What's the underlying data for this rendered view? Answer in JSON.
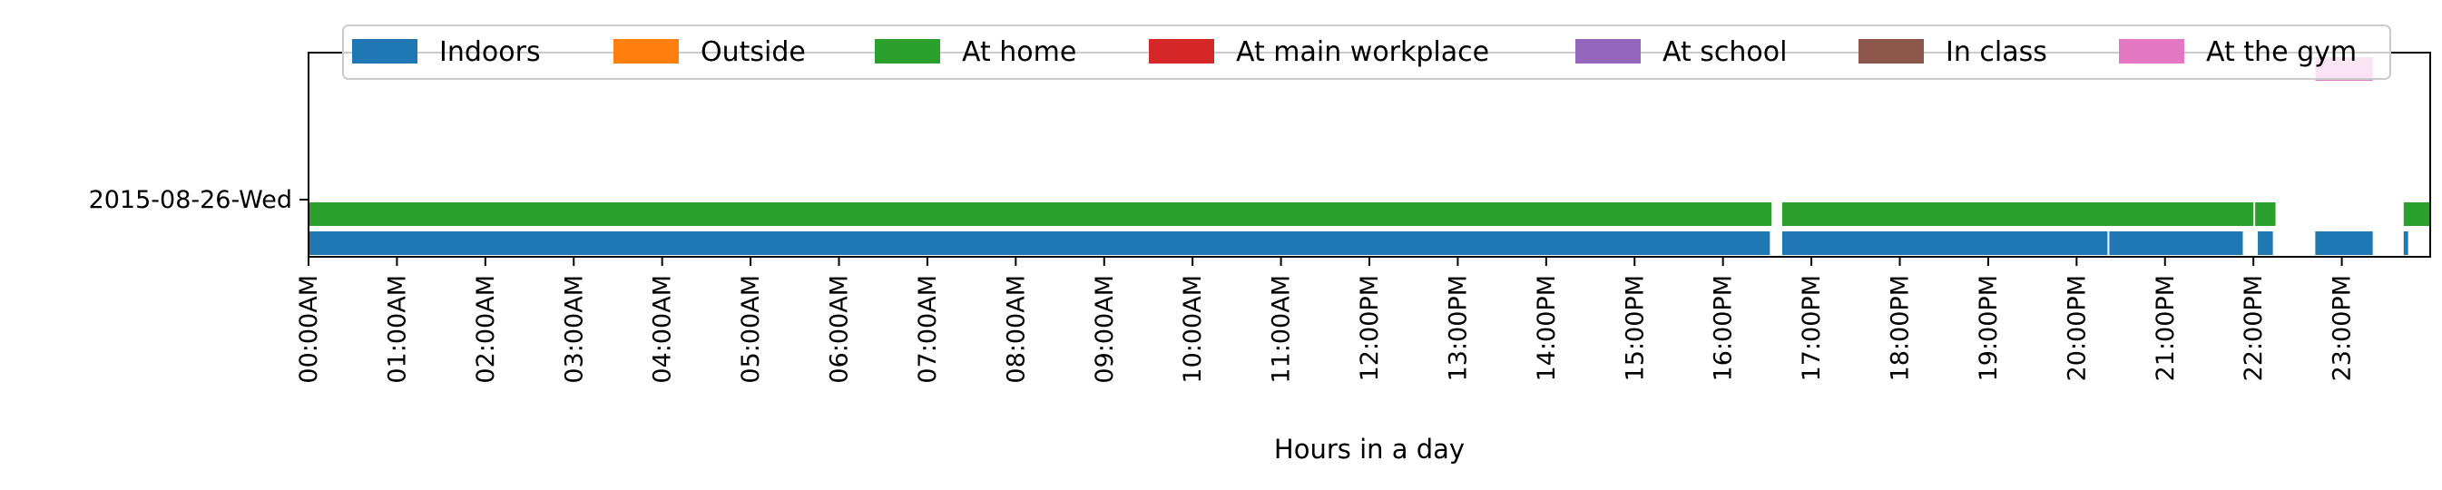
{
  "chart_data": {
    "type": "timeline",
    "xlabel": "Hours in a day",
    "xlim": [
      0,
      24
    ],
    "x_ticks": [
      "00:00AM",
      "01:00AM",
      "02:00AM",
      "03:00AM",
      "04:00AM",
      "05:00AM",
      "06:00AM",
      "07:00AM",
      "08:00AM",
      "09:00AM",
      "10:00AM",
      "11:00AM",
      "12:00PM",
      "13:00PM",
      "14:00PM",
      "15:00PM",
      "16:00PM",
      "17:00PM",
      "18:00PM",
      "19:00PM",
      "20:00PM",
      "21:00PM",
      "22:00PM",
      "23:00PM"
    ],
    "y_category": "2015-08-26-Wed",
    "legend_position": "top-center",
    "legend": [
      {
        "name": "Indoors",
        "color": "#1f77b4"
      },
      {
        "name": "Outside",
        "color": "#ff7f0e"
      },
      {
        "name": "At home",
        "color": "#2ca02c"
      },
      {
        "name": "At main workplace",
        "color": "#d62728"
      },
      {
        "name": "At school",
        "color": "#9467bd"
      },
      {
        "name": "In class",
        "color": "#8c564b"
      },
      {
        "name": "At the gym",
        "color": "#e377c2"
      }
    ],
    "series": [
      {
        "name": "Indoors",
        "color": "#1f77b4",
        "lane": 0,
        "intervals": [
          [
            0,
            16.53
          ],
          [
            16.67,
            20.35
          ],
          [
            20.37,
            21.88
          ],
          [
            22.05,
            22.22
          ],
          [
            22.7,
            23.35
          ],
          [
            23.7,
            23.75
          ]
        ]
      },
      {
        "name": "At home",
        "color": "#2ca02c",
        "lane": 1,
        "intervals": [
          [
            0,
            16.55
          ],
          [
            16.67,
            22.0
          ],
          [
            22.02,
            22.25
          ],
          [
            23.7,
            24.0
          ]
        ]
      },
      {
        "name": "At the gym",
        "color": "#e377c2",
        "lane": 6,
        "intervals": [
          [
            22.7,
            23.35
          ]
        ]
      }
    ]
  }
}
